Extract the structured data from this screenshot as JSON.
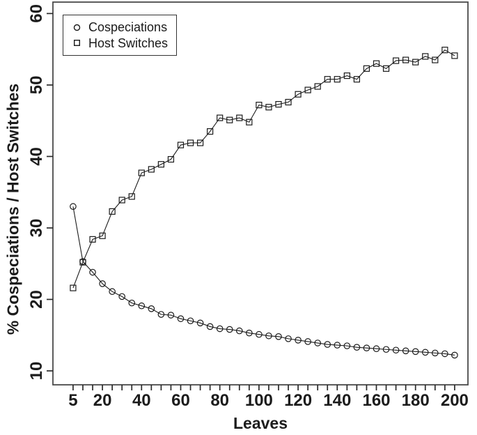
{
  "figure": {
    "background": "#ffffff",
    "axis_color": "#4a4a4a",
    "tick_color": "#2a2a2a",
    "line_color": "#1a1a1a",
    "text_color": "#1c1c1c"
  },
  "legend": {
    "items": [
      {
        "marker": "circle-marker-icon",
        "label": "Cospeciations"
      },
      {
        "marker": "square-marker-icon",
        "label": "Host Switches"
      }
    ]
  },
  "chart_data": {
    "type": "line",
    "xlabel": "Leaves",
    "ylabel": "% Cospeciations / Host Switches",
    "x": [
      5,
      10,
      15,
      20,
      25,
      30,
      35,
      40,
      45,
      50,
      55,
      60,
      65,
      70,
      75,
      80,
      85,
      90,
      95,
      100,
      105,
      110,
      115,
      120,
      125,
      130,
      135,
      140,
      145,
      150,
      155,
      160,
      165,
      170,
      175,
      180,
      185,
      190,
      195,
      200
    ],
    "series": [
      {
        "name": "Cospeciations",
        "marker": "circle",
        "values": [
          33.0,
          25.3,
          23.8,
          22.2,
          21.1,
          20.4,
          19.5,
          19.1,
          18.7,
          17.9,
          17.8,
          17.3,
          17.0,
          16.7,
          16.2,
          15.9,
          15.8,
          15.6,
          15.3,
          15.1,
          14.9,
          14.8,
          14.5,
          14.3,
          14.1,
          13.9,
          13.7,
          13.6,
          13.5,
          13.3,
          13.2,
          13.1,
          13.0,
          12.9,
          12.8,
          12.7,
          12.6,
          12.5,
          12.4,
          12.2
        ]
      },
      {
        "name": "Host Switches",
        "marker": "square",
        "values": [
          21.6,
          25.2,
          28.4,
          28.9,
          32.3,
          33.9,
          34.4,
          37.7,
          38.2,
          38.9,
          39.6,
          41.6,
          41.9,
          41.9,
          43.5,
          45.4,
          45.1,
          45.4,
          44.8,
          47.2,
          46.9,
          47.3,
          47.6,
          48.7,
          49.3,
          49.8,
          50.8,
          50.8,
          51.3,
          50.8,
          52.3,
          53.0,
          52.3,
          53.4,
          53.5,
          53.2,
          54.0,
          53.5,
          54.9,
          54.1
        ]
      }
    ],
    "x_ticks_labeled": [
      5,
      20,
      40,
      60,
      80,
      100,
      120,
      140,
      160,
      180,
      200
    ],
    "x_ticks_minor_step": 5,
    "y_ticks": [
      10,
      20,
      30,
      40,
      50,
      60
    ],
    "xlim": [
      -5.3,
      206.8
    ],
    "ylim": [
      8.05,
      61.6
    ],
    "grid": false,
    "legend_position": "top-left"
  }
}
